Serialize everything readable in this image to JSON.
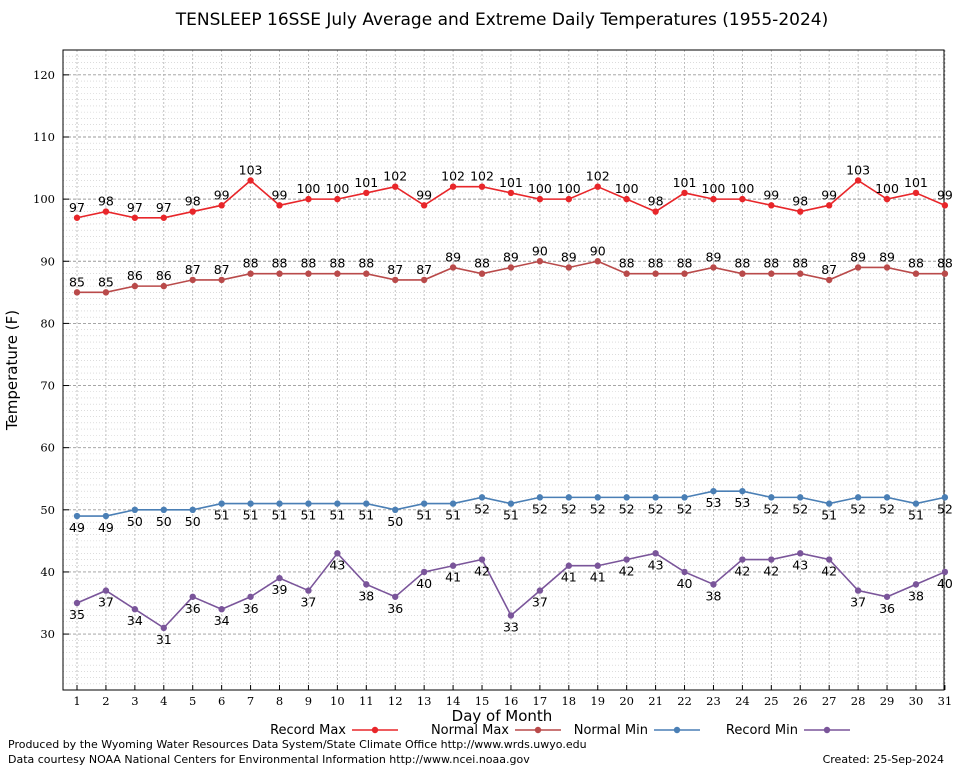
{
  "chart_data": {
    "type": "line",
    "title": "TENSLEEP 16SSE July Average and Extreme Daily Temperatures (1955-2024)",
    "xlabel": "Day of Month",
    "ylabel": "Temperature (F)",
    "ylim": [
      21,
      124
    ],
    "y_ticks": [
      30,
      40,
      50,
      60,
      70,
      80,
      90,
      100,
      110,
      120
    ],
    "x": [
      1,
      2,
      3,
      4,
      5,
      6,
      7,
      8,
      9,
      10,
      11,
      12,
      13,
      14,
      15,
      16,
      17,
      18,
      19,
      20,
      21,
      22,
      23,
      24,
      25,
      26,
      27,
      28,
      29,
      30,
      31
    ],
    "grid": true,
    "legend_position": "bottom",
    "series": [
      {
        "name": "Record Max",
        "color": "#e8262a",
        "label_pos": "above",
        "values": [
          97,
          98,
          97,
          97,
          98,
          99,
          103,
          99,
          100,
          100,
          101,
          102,
          99,
          102,
          102,
          101,
          100,
          100,
          102,
          100,
          98,
          101,
          100,
          100,
          99,
          98,
          99,
          103,
          100,
          101,
          99
        ]
      },
      {
        "name": "Normal Max",
        "color": "#b94a4a",
        "label_pos": "above",
        "values": [
          85,
          85,
          86,
          86,
          87,
          87,
          88,
          88,
          88,
          88,
          88,
          87,
          87,
          89,
          88,
          89,
          90,
          89,
          90,
          88,
          88,
          88,
          89,
          88,
          88,
          88,
          87,
          89,
          89,
          88,
          88
        ]
      },
      {
        "name": "Normal Min",
        "color": "#4a7fb5",
        "label_pos": "below",
        "values": [
          49,
          49,
          50,
          50,
          50,
          51,
          51,
          51,
          51,
          51,
          51,
          50,
          51,
          51,
          52,
          51,
          52,
          52,
          52,
          52,
          52,
          52,
          53,
          53,
          52,
          52,
          51,
          52,
          52,
          51,
          52
        ]
      },
      {
        "name": "Record Min",
        "color": "#7a559a",
        "label_pos": "below",
        "values": [
          35,
          37,
          34,
          31,
          36,
          34,
          36,
          39,
          37,
          43,
          38,
          36,
          40,
          41,
          42,
          33,
          37,
          41,
          41,
          42,
          43,
          40,
          38,
          42,
          42,
          43,
          42,
          37,
          36,
          38,
          40
        ]
      }
    ]
  },
  "footer": {
    "produced_by": "Produced by the Wyoming Water Resources Data System/State Climate Office http://www.wrds.uwyo.edu",
    "courtesy": "Data courtesy NOAA National Centers for Environmental Information http://www.ncei.noaa.gov",
    "created": "Created: 25-Sep-2024"
  }
}
